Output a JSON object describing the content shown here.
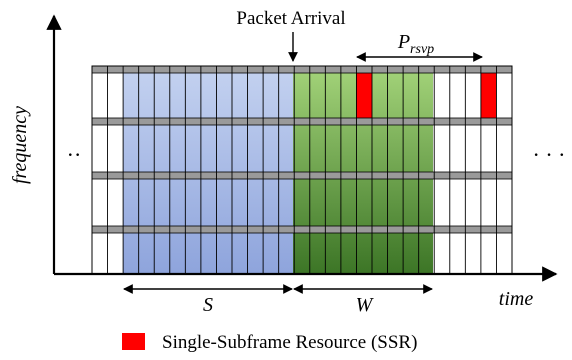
{
  "axes": {
    "y_label": "frequency",
    "x_label": "time"
  },
  "annotations": {
    "packet_arrival": "Packet Arrival",
    "period_label": "P",
    "period_subscript": "rsvp",
    "window_s": "S",
    "window_w": "W",
    "ellipsis_left": "··",
    "ellipsis_right": "· · ·"
  },
  "legend": {
    "ssr_label": "Single-Subframe Resource (SSR)"
  },
  "grid": {
    "num_columns": 22,
    "num_bands": 4,
    "s_window": {
      "first_column": 2,
      "last_column": 12
    },
    "w_window": {
      "first_column": 13,
      "last_column": 21
    },
    "ssr_cells": [
      {
        "column": 17,
        "band": 1
      },
      {
        "column": 25,
        "band": 1
      }
    ]
  },
  "colors": {
    "s_region": "#b8c8ec",
    "s_region_dark": "#8fa6de",
    "w_region_light": "#9acd6d",
    "w_region_dark": "#3f7a28",
    "ssr": "#ff0000",
    "separator": "#9a9a9a"
  }
}
